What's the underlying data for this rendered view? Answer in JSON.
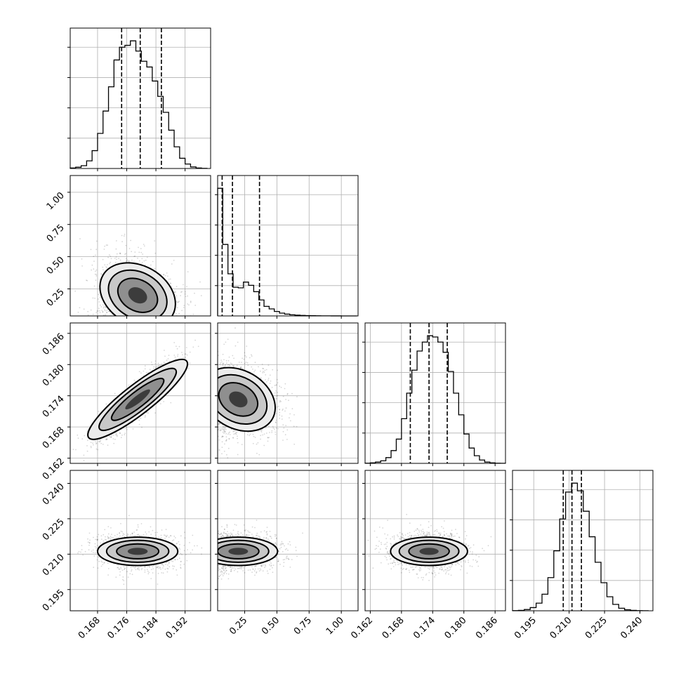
{
  "chart_data": {
    "type": "corner",
    "title": "",
    "grid": true,
    "parameters": [
      {
        "index": 0,
        "range": [
          0.1605,
          0.199
        ],
        "ticks": [
          0.168,
          0.176,
          0.184,
          0.192
        ],
        "tick_labels": [
          "0.168",
          "0.176",
          "0.184",
          "0.192"
        ],
        "quantiles": [
          0.1746,
          0.1797,
          0.1855
        ],
        "center": 0.179,
        "spread": 0.0055
      },
      {
        "index": 1,
        "range": [
          0.04,
          1.13
        ],
        "ticks": [
          0.25,
          0.5,
          0.75,
          1.0
        ],
        "tick_labels": [
          "0.25",
          "0.50",
          "0.75",
          "1.00"
        ],
        "ticks_diag_y": [
          0.25,
          0.5,
          0.75,
          1.0
        ],
        "tick_labels_y": [
          "0.25",
          "0.50",
          "0.75",
          "1.00"
        ],
        "quantiles": [
          0.075,
          0.155,
          0.365
        ],
        "center": 0.2,
        "spread": 0.15
      },
      {
        "index": 2,
        "range": [
          0.161,
          0.188
        ],
        "ticks": [
          0.162,
          0.168,
          0.174,
          0.18,
          0.186
        ],
        "tick_labels": [
          "0.162",
          "0.168",
          "0.174",
          "0.180",
          "0.186"
        ],
        "quantiles": [
          0.1697,
          0.1733,
          0.1768
        ],
        "center": 0.1733,
        "spread": 0.0037
      },
      {
        "index": 3,
        "range": [
          0.186,
          0.2455
        ],
        "ticks": [
          0.195,
          0.21,
          0.225,
          0.24
        ],
        "tick_labels": [
          "0.195",
          "0.210",
          "0.225",
          "0.240"
        ],
        "quantiles": [
          0.2075,
          0.2112,
          0.2152
        ],
        "center": 0.2112,
        "spread": 0.004
      }
    ],
    "histograms_1d": [
      {
        "param": 0,
        "bin_edges": [
          0.1605,
          0.162,
          0.1635,
          0.165,
          0.1665,
          0.168,
          0.1695,
          0.171,
          0.1725,
          0.174,
          0.1755,
          0.177,
          0.1785,
          0.18,
          0.1815,
          0.183,
          0.1845,
          0.186,
          0.1875,
          0.189,
          0.1905,
          0.192,
          0.1935,
          0.195,
          0.1965,
          0.198
        ],
        "counts": [
          0.4,
          1.0,
          2.2,
          6.0,
          14.0,
          27.5,
          45.0,
          64.0,
          85.0,
          95.0,
          96.5,
          100.0,
          92.0,
          84.0,
          79.5,
          68.5,
          56.5,
          44.0,
          30.0,
          17.0,
          8.0,
          3.5,
          1.2,
          0.4,
          0.1
        ]
      },
      {
        "param": 1,
        "bin_edges": [
          0.04,
          0.08,
          0.12,
          0.16,
          0.2,
          0.24,
          0.28,
          0.32,
          0.36,
          0.4,
          0.44,
          0.48,
          0.52,
          0.56,
          0.6,
          0.64,
          0.68,
          0.72,
          0.76,
          0.8,
          0.84,
          0.88,
          0.92,
          0.96,
          1.0,
          1.04,
          1.08,
          1.12
        ],
        "counts": [
          100.0,
          56.0,
          33.0,
          22.5,
          22.0,
          26.5,
          24.0,
          19.0,
          12.5,
          7.5,
          5.5,
          3.5,
          2.2,
          1.4,
          0.9,
          0.6,
          0.4,
          0.25,
          0.2,
          0.12,
          0.08,
          0.05,
          0.04,
          0.03,
          0.02,
          0.01,
          0.01
        ]
      },
      {
        "param": 2,
        "bin_edges": [
          0.161,
          0.162,
          0.163,
          0.164,
          0.165,
          0.166,
          0.167,
          0.168,
          0.169,
          0.17,
          0.171,
          0.172,
          0.173,
          0.174,
          0.175,
          0.176,
          0.177,
          0.178,
          0.179,
          0.18,
          0.181,
          0.182,
          0.183,
          0.184,
          0.185,
          0.186,
          0.187,
          0.188
        ],
        "counts": [
          0.1,
          0.4,
          1.0,
          2.0,
          4.5,
          10.0,
          19.0,
          35.0,
          55.0,
          73.0,
          88.0,
          95.0,
          100.0,
          99.0,
          95.0,
          87.0,
          72.0,
          55.0,
          38.0,
          23.0,
          12.0,
          6.0,
          2.6,
          1.0,
          0.4,
          0.1,
          0.05
        ]
      },
      {
        "param": 3,
        "bin_edges": [
          0.186,
          0.1885,
          0.191,
          0.1935,
          0.196,
          0.1985,
          0.201,
          0.2035,
          0.206,
          0.2085,
          0.211,
          0.2135,
          0.216,
          0.2185,
          0.221,
          0.2235,
          0.226,
          0.2285,
          0.231,
          0.2335,
          0.236,
          0.2385,
          0.241,
          0.2435
        ],
        "counts": [
          0.1,
          0.3,
          1.0,
          2.5,
          6.0,
          13.0,
          26.0,
          47.0,
          72.0,
          93.0,
          100.0,
          94.0,
          78.0,
          58.0,
          38.0,
          22.0,
          11.0,
          5.0,
          2.0,
          0.8,
          0.3,
          0.1,
          0.05
        ]
      }
    ],
    "contours_2d": [
      {
        "x_param": 0,
        "y_param": 1,
        "correlation": -0.45
      },
      {
        "x_param": 0,
        "y_param": 2,
        "correlation": 0.88
      },
      {
        "x_param": 1,
        "y_param": 2,
        "correlation": -0.35
      },
      {
        "x_param": 0,
        "y_param": 3,
        "correlation": -0.05
      },
      {
        "x_param": 1,
        "y_param": 3,
        "correlation": 0.0
      },
      {
        "x_param": 2,
        "y_param": 3,
        "correlation": -0.05
      }
    ],
    "colors": {
      "contour": "#000000",
      "points": "#000000",
      "grid": "#b0b0b0",
      "background": "#ffffff"
    }
  }
}
